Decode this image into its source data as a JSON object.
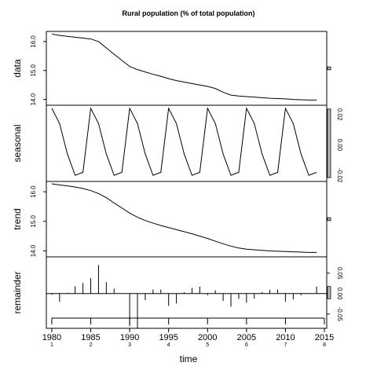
{
  "title": "Rural population (% of total population)",
  "chart_data": {
    "type": "line",
    "title": "Rural population (% of total population)",
    "xlabel": "time",
    "xlim": [
      1979.3,
      2015.3
    ],
    "x_ticks": [
      1980,
      1985,
      1990,
      1995,
      2000,
      2005,
      2010,
      2015
    ],
    "x_sub_ticks": [
      "1",
      "2",
      "3",
      "4",
      "5",
      "6",
      "7",
      "8"
    ],
    "panels": [
      {
        "name": "data",
        "ylim": [
          13.8,
          16.35
        ],
        "y_ticks": [
          14.0,
          15.0,
          16.0
        ],
        "y_tick_labels": [
          "14.0",
          "15.0",
          "16.0"
        ],
        "x": [
          1980,
          1981,
          1982,
          1983,
          1984,
          1985,
          1986,
          1987,
          1988,
          1989,
          1990,
          1991,
          1992,
          1993,
          1994,
          1995,
          1996,
          1997,
          1998,
          1999,
          2000,
          2001,
          2002,
          2003,
          2004,
          2005,
          2006,
          2007,
          2008,
          2009,
          2010,
          2011,
          2012,
          2013,
          2014
        ],
        "y": [
          16.26,
          16.21,
          16.18,
          16.15,
          16.12,
          16.09,
          16.0,
          15.78,
          15.56,
          15.35,
          15.14,
          15.03,
          14.95,
          14.87,
          14.8,
          14.72,
          14.65,
          14.6,
          14.55,
          14.5,
          14.45,
          14.38,
          14.25,
          14.15,
          14.12,
          14.1,
          14.08,
          14.06,
          14.04,
          14.03,
          14.02,
          14.0,
          13.99,
          13.98,
          13.98
        ],
        "scale_bar": 0.1
      },
      {
        "name": "seasonal",
        "ylim": [
          -0.024,
          0.026
        ],
        "y_ticks": [
          -0.02,
          0.0,
          0.02
        ],
        "y_tick_labels": [
          "-0.02",
          "0.00",
          "0.02"
        ],
        "x": [
          1980,
          1981,
          1982,
          1983,
          1984,
          1985,
          1986,
          1987,
          1988,
          1989,
          1990,
          1991,
          1992,
          1993,
          1994,
          1995,
          1996,
          1997,
          1998,
          1999,
          2000,
          2001,
          2002,
          2003,
          2004,
          2005,
          2006,
          2007,
          2008,
          2009,
          2010,
          2011,
          2012,
          2013,
          2014
        ],
        "y": [
          0.024,
          0.014,
          -0.006,
          -0.02,
          -0.018,
          0.024,
          0.014,
          -0.006,
          -0.02,
          -0.018,
          0.024,
          0.014,
          -0.006,
          -0.02,
          -0.018,
          0.024,
          0.014,
          -0.006,
          -0.02,
          -0.018,
          0.024,
          0.014,
          -0.006,
          -0.02,
          -0.018,
          0.024,
          0.014,
          -0.006,
          -0.02,
          -0.018,
          0.024,
          0.014,
          -0.006,
          -0.02,
          -0.018
        ],
        "scale_bar": 0.045
      },
      {
        "name": "trend",
        "ylim": [
          13.8,
          16.35
        ],
        "y_ticks": [
          14.0,
          15.0,
          16.0
        ],
        "y_tick_labels": [
          "14.0",
          "15.0",
          "16.0"
        ],
        "x": [
          1980,
          1981,
          1982,
          1983,
          1984,
          1985,
          1986,
          1987,
          1988,
          1989,
          1990,
          1991,
          1992,
          1993,
          1994,
          1995,
          1996,
          1997,
          1998,
          1999,
          2000,
          2001,
          2002,
          2003,
          2004,
          2005,
          2006,
          2007,
          2008,
          2009,
          2010,
          2011,
          2012,
          2013,
          2014
        ],
        "y": [
          16.27,
          16.23,
          16.2,
          16.16,
          16.11,
          16.04,
          15.94,
          15.8,
          15.62,
          15.45,
          15.28,
          15.14,
          15.03,
          14.94,
          14.86,
          14.79,
          14.72,
          14.65,
          14.58,
          14.5,
          14.42,
          14.33,
          14.24,
          14.16,
          14.1,
          14.06,
          14.04,
          14.02,
          14.0,
          13.99,
          13.98,
          13.97,
          13.96,
          13.95,
          13.95
        ],
        "scale_bar": 0.1
      },
      {
        "name": "remainder",
        "ylim": [
          -0.085,
          0.09
        ],
        "y_ticks": [
          -0.05,
          0.0,
          0.05
        ],
        "y_tick_labels": [
          "-0.05",
          "0.00",
          "0.05"
        ],
        "x": [
          1980,
          1981,
          1982,
          1983,
          1984,
          1985,
          1986,
          1987,
          1988,
          1989,
          1990,
          1991,
          1992,
          1993,
          1994,
          1995,
          1996,
          1997,
          1998,
          1999,
          2000,
          2001,
          2002,
          2003,
          2004,
          2005,
          2006,
          2007,
          2008,
          2009,
          2010,
          2011,
          2012,
          2013,
          2014
        ],
        "y": [
          -0.003,
          -0.02,
          0.002,
          0.018,
          0.026,
          0.038,
          0.07,
          0.028,
          0.012,
          0.0,
          -0.08,
          -0.085,
          -0.016,
          0.01,
          0.01,
          -0.03,
          -0.024,
          0.003,
          0.014,
          0.017,
          -0.004,
          0.008,
          -0.018,
          -0.032,
          -0.013,
          -0.022,
          -0.012,
          0.004,
          0.009,
          0.01,
          -0.02,
          -0.014,
          -0.004,
          -0.001,
          0.017
        ],
        "scale_bar": 0.03
      }
    ]
  }
}
